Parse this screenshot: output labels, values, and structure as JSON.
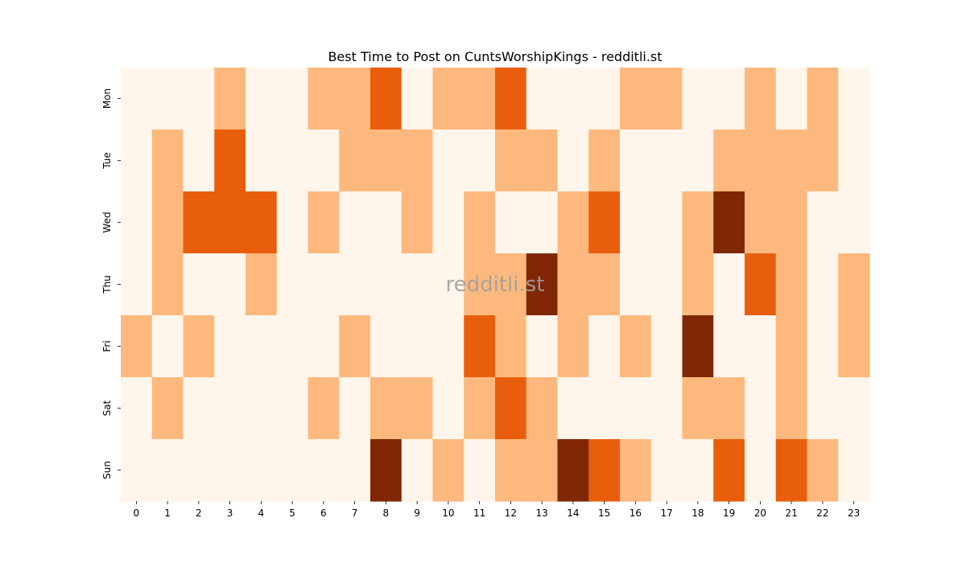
{
  "chart_data": {
    "type": "heatmap",
    "title": "Best Time to Post on CuntsWorshipKings - redditli.st",
    "xlabel": "",
    "ylabel": "",
    "watermark": "redditli.st",
    "x_categories": [
      "0",
      "1",
      "2",
      "3",
      "4",
      "5",
      "6",
      "7",
      "8",
      "9",
      "10",
      "11",
      "12",
      "13",
      "14",
      "15",
      "16",
      "17",
      "18",
      "19",
      "20",
      "21",
      "22",
      "23"
    ],
    "y_categories": [
      "Mon",
      "Tue",
      "Wed",
      "Thu",
      "Fri",
      "Sat",
      "Sun"
    ],
    "colorscale": [
      "#fff5eb",
      "#fdb97d",
      "#e95e0d",
      "#7f2704"
    ],
    "grid": false,
    "values": [
      [
        0,
        0,
        0,
        1,
        0,
        0,
        1,
        1,
        2,
        0,
        1,
        1,
        2,
        0,
        0,
        0,
        1,
        1,
        0,
        0,
        1,
        0,
        1,
        0
      ],
      [
        0,
        1,
        0,
        2,
        0,
        0,
        0,
        1,
        1,
        1,
        0,
        0,
        1,
        1,
        0,
        1,
        0,
        0,
        0,
        1,
        1,
        1,
        1,
        0
      ],
      [
        0,
        1,
        2,
        2,
        2,
        0,
        1,
        0,
        0,
        1,
        0,
        1,
        0,
        0,
        1,
        2,
        0,
        0,
        1,
        3,
        1,
        1,
        0,
        0
      ],
      [
        0,
        1,
        0,
        0,
        1,
        0,
        0,
        0,
        0,
        0,
        0,
        1,
        1,
        3,
        1,
        1,
        0,
        0,
        1,
        0,
        2,
        1,
        0,
        1
      ],
      [
        1,
        0,
        1,
        0,
        0,
        0,
        0,
        1,
        0,
        0,
        0,
        2,
        1,
        0,
        1,
        0,
        1,
        0,
        3,
        0,
        0,
        1,
        0,
        1
      ],
      [
        0,
        1,
        0,
        0,
        0,
        0,
        1,
        0,
        1,
        1,
        0,
        1,
        2,
        1,
        0,
        0,
        0,
        0,
        1,
        1,
        0,
        1,
        0,
        0
      ],
      [
        0,
        0,
        0,
        0,
        0,
        0,
        0,
        0,
        3,
        0,
        1,
        0,
        1,
        1,
        3,
        2,
        1,
        0,
        0,
        2,
        0,
        2,
        1,
        0
      ]
    ]
  }
}
